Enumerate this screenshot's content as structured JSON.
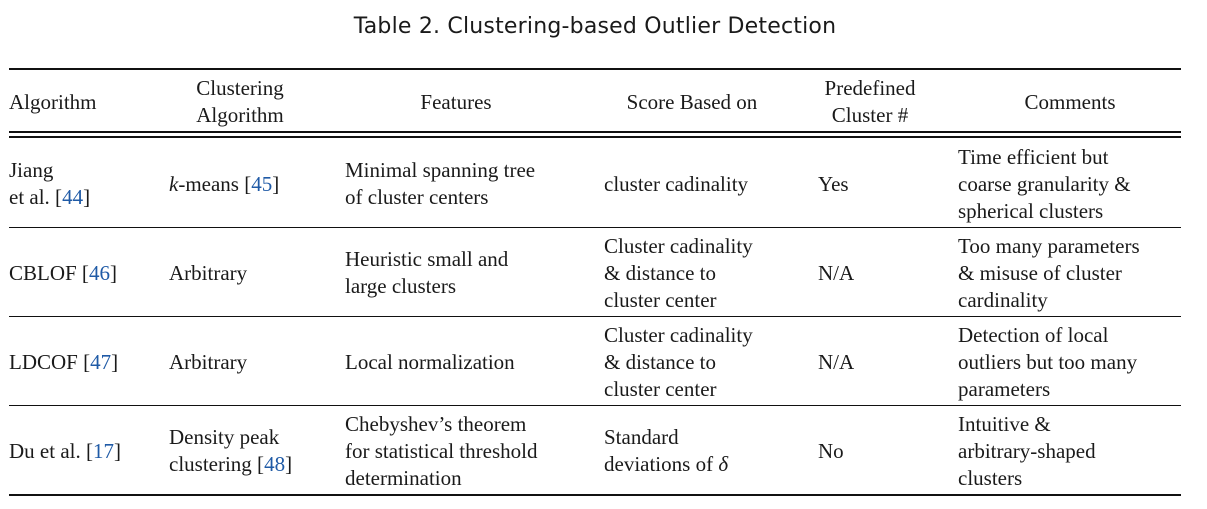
{
  "caption": "Table 2.  Clustering-based Outlier Detection",
  "header": {
    "algorithm": "Algorithm",
    "clustering_l1": "Clustering",
    "clustering_l2": "Algorithm",
    "features": "Features",
    "score": "Score Based on",
    "predef_l1": "Predefined",
    "predef_l2": "Cluster #",
    "comments": "Comments"
  },
  "rows": [
    {
      "algo_l1": "Jiang",
      "algo_l2_pre": "et al. [",
      "algo_l2_ref": "44",
      "algo_l2_post": "]",
      "clus_k": "k",
      "clus_text": "-means [",
      "clus_ref": "45",
      "clus_post": "]",
      "feat_l1": "Minimal spanning tree",
      "feat_l2": "of cluster centers",
      "score_l1": "cluster cadinality",
      "predef": "Yes",
      "comm_l1": "Time efficient but",
      "comm_l2": "coarse granularity &",
      "comm_l3": "spherical clusters"
    },
    {
      "algo_pre": "CBLOF [",
      "algo_ref": "46",
      "algo_post": "]",
      "clus": "Arbitrary",
      "feat_l1": "Heuristic small and",
      "feat_l2": "large clusters",
      "score_l1": "Cluster cadinality",
      "score_l2": "& distance to",
      "score_l3": "cluster center",
      "predef": "N/A",
      "comm_l1": "Too many parameters",
      "comm_l2": "& misuse of cluster",
      "comm_l3": "cardinality"
    },
    {
      "algo_pre": "LDCOF [",
      "algo_ref": "47",
      "algo_post": "]",
      "clus": "Arbitrary",
      "feat_l1": "Local normalization",
      "score_l1": "Cluster cadinality",
      "score_l2": "& distance to",
      "score_l3": "cluster center",
      "predef": "N/A",
      "comm_l1": "Detection of local",
      "comm_l2": "outliers but too many",
      "comm_l3": "parameters"
    },
    {
      "algo_pre": "Du et al. [",
      "algo_ref": "17",
      "algo_post": "]",
      "clus_l1": "Density peak",
      "clus_l2_pre": "clustering [",
      "clus_l2_ref": "48",
      "clus_l2_post": "]",
      "feat_l1": "Chebyshev’s theorem",
      "feat_l2": "for statistical threshold",
      "feat_l3": "determination",
      "score_l1": "Standard",
      "score_l2_pre": "deviations of ",
      "score_l2_sym": "δ",
      "predef": "No",
      "comm_l1": "Intuitive &",
      "comm_l2": "arbitrary-shaped",
      "comm_l3": "clusters"
    }
  ]
}
